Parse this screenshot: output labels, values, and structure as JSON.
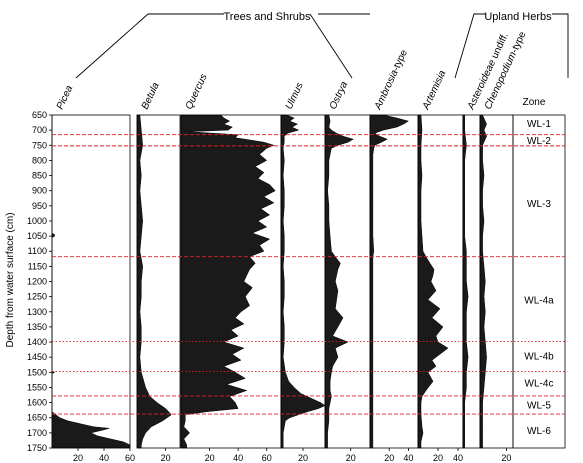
{
  "chart_data": {
    "type": "area",
    "ylabel": "Depth from water surface (cm)",
    "ylim": [
      650,
      1750
    ],
    "y_ticks": [
      650,
      700,
      750,
      800,
      850,
      900,
      950,
      1000,
      1050,
      1100,
      1150,
      1200,
      1250,
      1300,
      1350,
      1400,
      1450,
      1500,
      1550,
      1600,
      1650,
      1700,
      1750
    ],
    "groups": [
      {
        "label": "Trees and Shrubs",
        "taxa": [
          "Picea",
          "Betula",
          "Quercus",
          "Ulmus",
          "Ostrya"
        ]
      },
      {
        "label": "Upland Herbs",
        "taxa": [
          "Ambrosia-type",
          "Artemisia",
          "Asteroideae undiff.",
          "Chenopodium-type"
        ]
      }
    ],
    "zone_title": "Zone",
    "zones": [
      {
        "name": "WL-1",
        "top": 650,
        "bottom": 715,
        "label_depth": 677
      },
      {
        "name": "WL-2",
        "top": 715,
        "bottom": 752,
        "label_depth": 733
      },
      {
        "name": "WL-3",
        "top": 752,
        "bottom": 1118,
        "label_depth": 940
      },
      {
        "name": "WL-4a",
        "top": 1118,
        "bottom": 1398,
        "label_depth": 1260
      },
      {
        "name": "WL-4b",
        "top": 1398,
        "bottom": 1497,
        "label_depth": 1444
      },
      {
        "name": "WL-4c",
        "top": 1497,
        "bottom": 1578,
        "label_depth": 1533
      },
      {
        "name": "WL-5",
        "top": 1578,
        "bottom": 1638,
        "label_depth": 1606
      },
      {
        "name": "WL-6",
        "top": 1638,
        "bottom": 1750,
        "label_depth": 1690
      }
    ],
    "boundaries": [
      {
        "depth": 715,
        "style": "dashed"
      },
      {
        "depth": 752,
        "style": "dashed"
      },
      {
        "depth": 1118,
        "style": "dashed"
      },
      {
        "depth": 1398,
        "style": "dotted"
      },
      {
        "depth": 1497,
        "style": "dotted"
      },
      {
        "depth": 1578,
        "style": "dashed"
      },
      {
        "depth": 1638,
        "style": "dashed"
      }
    ],
    "taxa": [
      {
        "name": "Picea",
        "xmax": 60,
        "ticks": [
          20,
          40,
          60
        ],
        "depths": [
          650,
          900,
          1040,
          1045,
          1050,
          1055,
          1060,
          1300,
          1450,
          1495,
          1500,
          1505,
          1600,
          1630,
          1640,
          1650,
          1660,
          1670,
          1680,
          1685,
          1690,
          1700,
          1710,
          1720,
          1730,
          1740,
          1750
        ],
        "values": [
          0,
          0,
          0,
          2,
          2,
          0,
          0,
          0,
          0,
          0,
          2,
          0,
          0,
          0,
          3,
          6,
          12,
          22,
          32,
          44,
          40,
          30,
          35,
          45,
          55,
          60,
          60
        ]
      },
      {
        "name": "Betula",
        "xmax": 30,
        "ticks": [
          20
        ],
        "depths": [
          650,
          700,
          750,
          800,
          850,
          900,
          950,
          1000,
          1050,
          1100,
          1150,
          1200,
          1250,
          1300,
          1350,
          1400,
          1450,
          1500,
          1550,
          1580,
          1600,
          1620,
          1640,
          1660,
          1680,
          1700,
          1720,
          1740,
          1750
        ],
        "values": [
          2,
          3,
          4,
          2,
          3,
          2,
          3,
          4,
          3,
          2,
          4,
          3,
          3,
          2,
          3,
          3,
          2,
          3,
          6,
          9,
          14,
          20,
          24,
          18,
          10,
          6,
          4,
          3,
          3
        ]
      },
      {
        "name": "Quercus",
        "xmax": 70,
        "ticks": [
          20,
          40,
          60
        ],
        "depths": [
          650,
          660,
          670,
          680,
          690,
          700,
          705,
          715,
          725,
          740,
          750,
          760,
          780,
          800,
          820,
          840,
          860,
          880,
          900,
          920,
          940,
          960,
          980,
          1000,
          1020,
          1040,
          1060,
          1080,
          1100,
          1118,
          1140,
          1160,
          1180,
          1200,
          1220,
          1250,
          1280,
          1300,
          1320,
          1340,
          1360,
          1380,
          1400,
          1420,
          1440,
          1460,
          1480,
          1500,
          1520,
          1540,
          1560,
          1580,
          1600,
          1620,
          1630,
          1640,
          1660,
          1680,
          1700,
          1720,
          1740,
          1750
        ],
        "values": [
          28,
          30,
          34,
          30,
          36,
          33,
          5,
          40,
          38,
          58,
          65,
          60,
          55,
          60,
          52,
          58,
          54,
          62,
          66,
          58,
          65,
          56,
          62,
          54,
          60,
          50,
          62,
          55,
          58,
          48,
          52,
          48,
          46,
          44,
          50,
          45,
          48,
          42,
          38,
          44,
          35,
          40,
          30,
          44,
          36,
          42,
          30,
          38,
          45,
          32,
          46,
          34,
          38,
          40,
          18,
          3,
          3,
          2,
          6,
          2,
          4,
          4
        ]
      },
      {
        "name": "Ulmus",
        "xmax": 40,
        "ticks": [
          20
        ],
        "depths": [
          650,
          660,
          670,
          680,
          690,
          700,
          710,
          720,
          740,
          760,
          800,
          850,
          900,
          950,
          1000,
          1050,
          1100,
          1150,
          1200,
          1250,
          1300,
          1350,
          1400,
          1450,
          1500,
          1530,
          1550,
          1570,
          1580,
          1590,
          1600,
          1610,
          1620,
          1630,
          1640,
          1650,
          1660,
          1680,
          1700,
          1720,
          1740,
          1750
        ],
        "values": [
          5,
          12,
          8,
          15,
          10,
          16,
          6,
          3,
          3,
          2,
          3,
          2,
          3,
          3,
          2,
          3,
          3,
          2,
          3,
          3,
          2,
          3,
          3,
          2,
          4,
          7,
          12,
          18,
          24,
          30,
          36,
          40,
          34,
          24,
          16,
          8,
          4,
          3,
          2,
          2,
          2,
          2
        ]
      },
      {
        "name": "Ostrya",
        "xmax": 35,
        "ticks": [
          20
        ],
        "depths": [
          650,
          670,
          690,
          700,
          710,
          720,
          730,
          740,
          750,
          760,
          780,
          800,
          850,
          900,
          950,
          1000,
          1050,
          1100,
          1118,
          1140,
          1160,
          1180,
          1200,
          1230,
          1260,
          1290,
          1320,
          1350,
          1380,
          1400,
          1420,
          1450,
          1480,
          1500,
          1530,
          1560,
          1580,
          1600,
          1620,
          1640,
          1660,
          1700,
          1750
        ],
        "values": [
          3,
          4,
          3,
          5,
          9,
          14,
          22,
          18,
          10,
          5,
          4,
          3,
          3,
          2,
          3,
          3,
          4,
          5,
          8,
          12,
          10,
          9,
          8,
          10,
          9,
          8,
          14,
          10,
          6,
          18,
          8,
          10,
          6,
          5,
          4,
          4,
          5,
          4,
          3,
          3,
          3,
          2,
          2
        ]
      },
      {
        "name": "Ambrosia-type",
        "xmax": 50,
        "ticks": [
          20,
          40
        ],
        "depths": [
          650,
          660,
          670,
          680,
          690,
          700,
          710,
          720,
          730,
          740,
          750,
          760,
          780,
          800,
          850,
          900,
          950,
          1000,
          1050,
          1100,
          1118,
          1140,
          1160,
          1180,
          1200,
          1220,
          1250,
          1300,
          1350,
          1400,
          1450,
          1500,
          1550,
          1600,
          1650,
          1700,
          1750
        ],
        "values": [
          14,
          28,
          40,
          35,
          28,
          14,
          5,
          10,
          18,
          12,
          5,
          4,
          3,
          3,
          3,
          3,
          3,
          3,
          3,
          4,
          3,
          3,
          3,
          3,
          3,
          3,
          3,
          3,
          3,
          3,
          3,
          3,
          3,
          3,
          3,
          3,
          3
        ]
      },
      {
        "name": "Artemisia",
        "xmax": 45,
        "ticks": [
          20,
          40
        ],
        "depths": [
          650,
          700,
          750,
          800,
          850,
          900,
          950,
          1000,
          1050,
          1100,
          1118,
          1140,
          1160,
          1180,
          1200,
          1230,
          1260,
          1290,
          1320,
          1350,
          1380,
          1400,
          1420,
          1440,
          1460,
          1480,
          1500,
          1530,
          1560,
          1580,
          1600,
          1640,
          1680,
          1700,
          1730,
          1750
        ],
        "values": [
          3,
          4,
          3,
          3,
          4,
          3,
          3,
          3,
          4,
          5,
          8,
          12,
          16,
          15,
          13,
          18,
          10,
          22,
          14,
          25,
          18,
          20,
          30,
          22,
          14,
          18,
          10,
          15,
          8,
          4,
          3,
          3,
          4,
          5,
          3,
          3
        ]
      },
      {
        "name": "Asteroideae undiff.",
        "xmax": 10,
        "ticks": [],
        "depths": [
          650,
          700,
          750,
          800,
          850,
          900,
          950,
          1000,
          1050,
          1100,
          1150,
          1200,
          1250,
          1300,
          1350,
          1400,
          1450,
          1500,
          1550,
          1600,
          1650,
          1700,
          1750
        ],
        "values": [
          1,
          1,
          2,
          1,
          1,
          1,
          1,
          1,
          1,
          2,
          2,
          2,
          3,
          2,
          2,
          2,
          3,
          2,
          2,
          1,
          1,
          1,
          1
        ]
      },
      {
        "name": "Chenopodium-type",
        "xmax": 25,
        "ticks": [
          20
        ],
        "depths": [
          650,
          680,
          700,
          720,
          750,
          800,
          850,
          900,
          950,
          1000,
          1050,
          1100,
          1150,
          1200,
          1250,
          1300,
          1350,
          1400,
          1450,
          1500,
          1550,
          1600,
          1650,
          1700,
          1750
        ],
        "values": [
          2,
          5,
          3,
          5,
          2,
          2,
          3,
          2,
          2,
          3,
          2,
          2,
          3,
          4,
          3,
          4,
          3,
          4,
          5,
          4,
          3,
          2,
          2,
          2,
          2
        ]
      }
    ]
  }
}
